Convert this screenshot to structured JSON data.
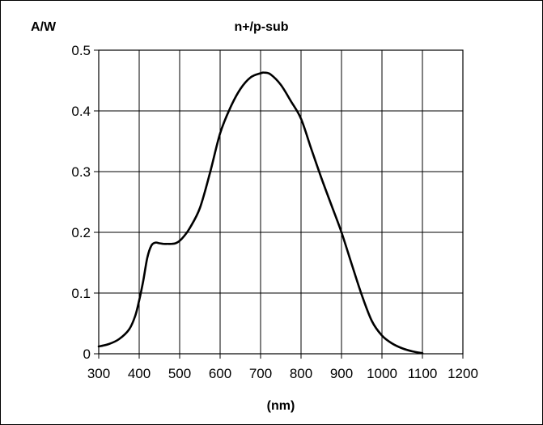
{
  "chart_data": {
    "type": "line",
    "title": "n+/p-sub",
    "ylabel": "A/W",
    "xlabel": "(nm)",
    "xlim": [
      300,
      1200
    ],
    "ylim": [
      0,
      0.5
    ],
    "grid": true,
    "x_ticks": [
      300,
      400,
      500,
      600,
      700,
      800,
      900,
      1000,
      1100,
      1200
    ],
    "x_tick_labels": [
      "300",
      "400",
      "500",
      "600",
      "700",
      "800",
      "900",
      "1000",
      "1100",
      "1200"
    ],
    "y_ticks": [
      0,
      0.1,
      0.2,
      0.3,
      0.4,
      0.5
    ],
    "y_tick_labels": [
      "0",
      "0.1",
      "0.2",
      "0.3",
      "0.4",
      "0.5"
    ],
    "series": [
      {
        "x": [
          300,
          325,
          350,
          375,
          390,
          400,
          410,
          420,
          430,
          440,
          450,
          460,
          470,
          480,
          490,
          500,
          510,
          525,
          550,
          575,
          600,
          625,
          650,
          675,
          700,
          710,
          725,
          750,
          775,
          800,
          825,
          850,
          875,
          900,
          925,
          950,
          975,
          1000,
          1025,
          1050,
          1075,
          1100
        ],
        "y": [
          0.012,
          0.016,
          0.024,
          0.04,
          0.062,
          0.088,
          0.12,
          0.158,
          0.178,
          0.183,
          0.182,
          0.181,
          0.181,
          0.181,
          0.182,
          0.186,
          0.193,
          0.207,
          0.24,
          0.298,
          0.363,
          0.405,
          0.436,
          0.455,
          0.462,
          0.463,
          0.46,
          0.443,
          0.416,
          0.387,
          0.338,
          0.29,
          0.245,
          0.2,
          0.148,
          0.097,
          0.054,
          0.03,
          0.017,
          0.009,
          0.004,
          0.001
        ]
      }
    ]
  }
}
